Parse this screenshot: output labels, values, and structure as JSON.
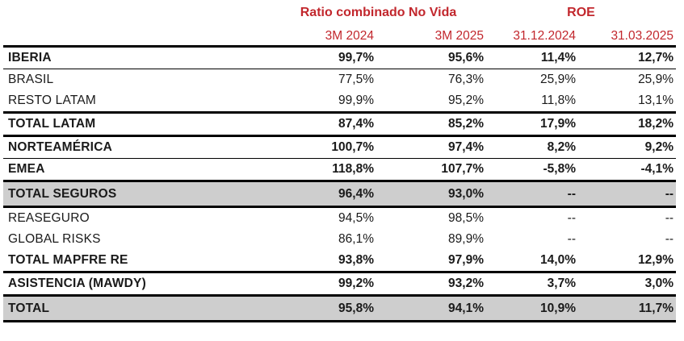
{
  "table": {
    "header_groups": [
      {
        "label": "Ratio combinado No Vida",
        "span": 2
      },
      {
        "label": "ROE",
        "span": 2
      }
    ],
    "column_headers": [
      "3M 2024",
      "3M 2025",
      "31.12.2024",
      "31.03.2025"
    ],
    "rows": [
      {
        "label": "IBERIA",
        "values": [
          "99,7%",
          "95,6%",
          "11,4%",
          "12,7%"
        ],
        "bold": true,
        "highlight": false,
        "divider": "thin"
      },
      {
        "label": "BRASIL",
        "values": [
          "77,5%",
          "76,3%",
          "25,9%",
          "25,9%"
        ],
        "bold": false,
        "highlight": false,
        "divider": "none"
      },
      {
        "label": "RESTO LATAM",
        "values": [
          "99,9%",
          "95,2%",
          "11,8%",
          "13,1%"
        ],
        "bold": false,
        "highlight": false,
        "divider": "thick"
      },
      {
        "label": "TOTAL LATAM",
        "values": [
          "87,4%",
          "85,2%",
          "17,9%",
          "18,2%"
        ],
        "bold": true,
        "highlight": false,
        "divider": "thick"
      },
      {
        "label": "NORTEAMÉRICA",
        "values": [
          "100,7%",
          "97,4%",
          "8,2%",
          "9,2%"
        ],
        "bold": true,
        "highlight": false,
        "divider": "thin"
      },
      {
        "label": "EMEA",
        "values": [
          "118,8%",
          "107,7%",
          "-5,8%",
          "-4,1%"
        ],
        "bold": true,
        "highlight": false,
        "divider": "thick"
      },
      {
        "label": "TOTAL SEGUROS",
        "values": [
          "96,4%",
          "93,0%",
          "--",
          "--"
        ],
        "bold": true,
        "highlight": true,
        "divider": "thick"
      },
      {
        "label": "REASEGURO",
        "values": [
          "94,5%",
          "98,5%",
          "--",
          "--"
        ],
        "bold": false,
        "highlight": false,
        "divider": "none"
      },
      {
        "label": "GLOBAL RISKS",
        "values": [
          "86,1%",
          "89,9%",
          "--",
          "--"
        ],
        "bold": false,
        "highlight": false,
        "divider": "none"
      },
      {
        "label": "TOTAL MAPFRE RE",
        "values": [
          "93,8%",
          "97,9%",
          "14,0%",
          "12,9%"
        ],
        "bold": true,
        "highlight": false,
        "divider": "thick"
      },
      {
        "label": "ASISTENCIA (MAWDY)",
        "values": [
          "99,2%",
          "93,2%",
          "3,7%",
          "3,0%"
        ],
        "bold": true,
        "highlight": false,
        "divider": "thick"
      },
      {
        "label": "TOTAL",
        "values": [
          "95,8%",
          "94,1%",
          "10,9%",
          "11,7%"
        ],
        "bold": true,
        "highlight": true,
        "divider": "thick"
      }
    ]
  },
  "colors": {
    "header_red": "#C2272D",
    "highlight_gray": "#CECECE",
    "line_black": "#000000"
  },
  "chart_data": {
    "type": "table",
    "title": "Ratio combinado No Vida / ROE",
    "column_groups": [
      "Ratio combinado No Vida",
      "Ratio combinado No Vida",
      "ROE",
      "ROE"
    ],
    "columns": [
      "3M 2024",
      "3M 2025",
      "31.12.2024",
      "31.03.2025"
    ],
    "units": "%",
    "rows": [
      {
        "label": "IBERIA",
        "values": [
          99.7,
          95.6,
          11.4,
          12.7
        ]
      },
      {
        "label": "BRASIL",
        "values": [
          77.5,
          76.3,
          25.9,
          25.9
        ]
      },
      {
        "label": "RESTO LATAM",
        "values": [
          99.9,
          95.2,
          11.8,
          13.1
        ]
      },
      {
        "label": "TOTAL LATAM",
        "values": [
          87.4,
          85.2,
          17.9,
          18.2
        ]
      },
      {
        "label": "NORTEAMÉRICA",
        "values": [
          100.7,
          97.4,
          8.2,
          9.2
        ]
      },
      {
        "label": "EMEA",
        "values": [
          118.8,
          107.7,
          -5.8,
          -4.1
        ]
      },
      {
        "label": "TOTAL SEGUROS",
        "values": [
          96.4,
          93.0,
          null,
          null
        ]
      },
      {
        "label": "REASEGURO",
        "values": [
          94.5,
          98.5,
          null,
          null
        ]
      },
      {
        "label": "GLOBAL RISKS",
        "values": [
          86.1,
          89.9,
          null,
          null
        ]
      },
      {
        "label": "TOTAL MAPFRE RE",
        "values": [
          93.8,
          97.9,
          14.0,
          12.9
        ]
      },
      {
        "label": "ASISTENCIA (MAWDY)",
        "values": [
          99.2,
          93.2,
          3.7,
          3.0
        ]
      },
      {
        "label": "TOTAL",
        "values": [
          95.8,
          94.1,
          10.9,
          11.7
        ]
      }
    ]
  }
}
